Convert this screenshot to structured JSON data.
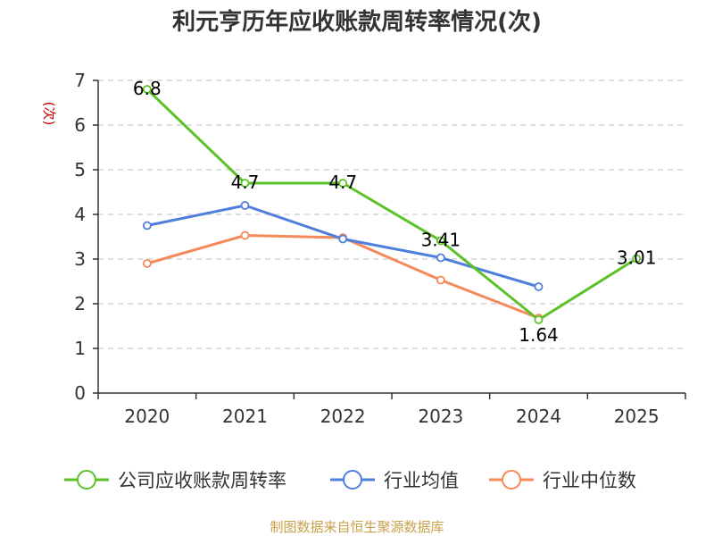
{
  "chart_data": {
    "type": "line",
    "title": "利元亨历年应收账款周转率情况(次)",
    "ylabel": "(次)",
    "xlabel": "",
    "categories": [
      "2020",
      "2021",
      "2022",
      "2023",
      "2024",
      "2025"
    ],
    "ylim": [
      0,
      7
    ],
    "yticks": [
      "0",
      "1",
      "2",
      "3",
      "4",
      "5",
      "6",
      "7"
    ],
    "grid": true,
    "legend_position": "bottom",
    "series": [
      {
        "name": "公司应收账款周转率",
        "color": "#5cc229",
        "values": [
          6.8,
          4.7,
          4.7,
          3.41,
          1.64,
          3.01
        ],
        "labels": [
          "6.8",
          "4.7",
          "4.7",
          "3.41",
          "1.64",
          "3.01"
        ]
      },
      {
        "name": "行业均值",
        "color": "#4f7fdc",
        "values": [
          3.75,
          4.2,
          3.45,
          3.03,
          2.38,
          null
        ]
      },
      {
        "name": "行业中位数",
        "color": "#f5895a",
        "values": [
          2.9,
          3.53,
          3.48,
          2.53,
          1.68,
          null
        ]
      }
    ],
    "source": "制图数据来自恒生聚源数据库"
  }
}
